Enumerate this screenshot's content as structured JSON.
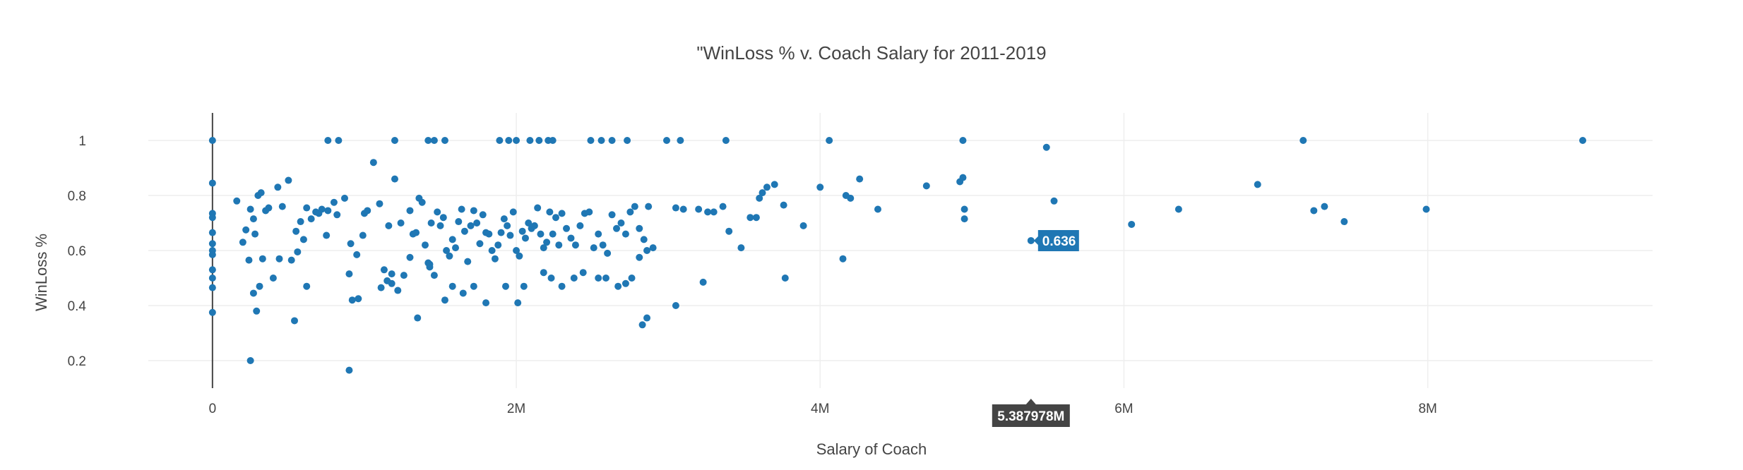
{
  "modebar": {
    "buttons": [
      {
        "name": "camera-icon",
        "group": 0
      },
      {
        "name": "zoom-icon",
        "group": 1
      },
      {
        "name": "pan-icon",
        "group": 1
      },
      {
        "name": "box-select-icon",
        "group": 1
      },
      {
        "name": "lasso-select-icon",
        "group": 1
      },
      {
        "name": "zoom-in-icon",
        "group": 2
      },
      {
        "name": "zoom-out-icon",
        "group": 2
      },
      {
        "name": "autoscale-icon",
        "group": 2
      },
      {
        "name": "home-icon",
        "group": 2
      },
      {
        "name": "spike-lines-icon",
        "group": 3
      },
      {
        "name": "hover-closest-icon",
        "group": 3
      },
      {
        "name": "hover-compare-icon",
        "group": 3
      },
      {
        "name": "plotly-logo-icon",
        "group": 4
      }
    ],
    "active": "zoom-icon",
    "icon_color": "#c9c9c9",
    "active_color": "#555555"
  },
  "chart_data": {
    "type": "scatter",
    "title": "\"WinLoss % v. Coach Salary for 2011-2019",
    "xlabel": "Salary of Coach",
    "ylabel": "WinLoss %",
    "xlim": [
      -1050000,
      9480000
    ],
    "ylim": [
      0.1,
      1.1
    ],
    "x_ticks": [
      0,
      2000000,
      4000000,
      6000000,
      8000000
    ],
    "x_tick_labels": [
      "0",
      "2M",
      "4M",
      "6M",
      "8M"
    ],
    "y_ticks": [
      0.2,
      0.4,
      0.6,
      0.8,
      1
    ],
    "y_tick_labels": [
      "0.2",
      "0.4",
      "0.6",
      "0.8",
      "1"
    ],
    "grid": true,
    "zeroline_x": true,
    "marker_color": "#1f77b4",
    "hover": {
      "x": 5387978,
      "y": 0.636,
      "x_label": "5.387978M",
      "y_label": "0.636"
    },
    "x": [
      0,
      0,
      0,
      0,
      0,
      0,
      0,
      0,
      0,
      0,
      0,
      0,
      160000,
      200000,
      220000,
      240000,
      250000,
      270000,
      280000,
      300000,
      320000,
      330000,
      350000,
      370000,
      400000,
      430000,
      460000,
      500000,
      520000,
      550000,
      560000,
      580000,
      600000,
      620000,
      650000,
      680000,
      700000,
      720000,
      750000,
      760000,
      800000,
      820000,
      870000,
      900000,
      920000,
      950000,
      990000,
      1000000,
      1020000,
      1060000,
      1100000,
      1130000,
      1160000,
      1180000,
      1200000,
      1220000,
      1240000,
      1260000,
      1300000,
      1320000,
      1340000,
      1360000,
      1380000,
      1400000,
      1420000,
      1430000,
      1440000,
      1460000,
      1480000,
      1500000,
      1520000,
      1540000,
      1560000,
      1580000,
      1600000,
      1620000,
      1640000,
      1660000,
      1680000,
      1700000,
      1720000,
      1740000,
      1760000,
      1780000,
      1800000,
      1820000,
      1840000,
      1860000,
      1880000,
      1900000,
      1920000,
      1940000,
      1960000,
      1980000,
      2000000,
      2020000,
      2040000,
      2060000,
      2080000,
      2100000,
      2120000,
      2140000,
      2160000,
      2180000,
      2200000,
      2220000,
      2240000,
      2260000,
      2280000,
      2300000,
      2330000,
      2360000,
      2390000,
      2420000,
      2450000,
      2480000,
      2510000,
      2540000,
      2570000,
      2600000,
      2630000,
      2660000,
      2690000,
      2720000,
      2750000,
      2780000,
      2810000,
      2840000,
      2870000,
      2900000,
      760000,
      830000,
      1200000,
      1420000,
      1460000,
      1530000,
      1890000,
      1950000,
      2000000,
      2090000,
      2150000,
      2210000,
      2240000,
      2490000,
      2560000,
      2630000,
      2730000,
      2990000,
      3080000,
      3380000,
      4060000,
      4940000,
      7180000,
      9020000,
      250000,
      270000,
      310000,
      440000,
      540000,
      620000,
      900000,
      960000,
      1110000,
      1150000,
      1180000,
      1300000,
      1350000,
      1430000,
      1530000,
      1580000,
      1650000,
      1720000,
      1800000,
      1930000,
      2010000,
      2050000,
      2180000,
      2230000,
      2300000,
      2380000,
      2440000,
      2540000,
      2590000,
      2670000,
      2720000,
      2760000,
      2830000,
      2860000,
      3050000,
      3100000,
      3200000,
      3260000,
      3300000,
      3360000,
      3400000,
      3480000,
      3540000,
      3580000,
      3600000,
      3620000,
      3650000,
      3700000,
      3760000,
      3890000,
      4000000,
      4150000,
      4200000,
      4260000,
      4380000,
      4700000,
      4920000,
      4940000,
      4950000,
      4950000,
      5490000,
      5540000,
      6050000,
      6360000,
      6880000,
      7250000,
      7320000,
      7450000,
      7990000,
      5387978,
      290000,
      910000,
      2810000,
      2860000,
      3050000,
      3230000,
      3770000,
      4170000
    ],
    "y": [
      1,
      0.845,
      0.735,
      0.72,
      0.665,
      0.625,
      0.6,
      0.585,
      0.53,
      0.5,
      0.465,
      0.375,
      0.78,
      0.63,
      0.675,
      0.565,
      0.75,
      0.715,
      0.66,
      0.8,
      0.81,
      0.57,
      0.745,
      0.755,
      0.5,
      0.83,
      0.76,
      0.855,
      0.565,
      0.67,
      0.595,
      0.705,
      0.64,
      0.755,
      0.715,
      0.74,
      0.735,
      0.75,
      0.655,
      0.745,
      0.775,
      0.73,
      0.79,
      0.515,
      0.42,
      0.585,
      0.655,
      0.735,
      0.745,
      0.92,
      0.77,
      0.53,
      0.69,
      0.48,
      0.86,
      0.455,
      0.7,
      0.51,
      0.745,
      0.66,
      0.665,
      0.79,
      0.775,
      0.62,
      0.555,
      0.54,
      0.7,
      0.51,
      0.74,
      0.69,
      0.72,
      0.6,
      0.58,
      0.64,
      0.61,
      0.705,
      0.75,
      0.67,
      0.56,
      0.69,
      0.745,
      0.7,
      0.625,
      0.73,
      0.665,
      0.66,
      0.6,
      0.57,
      0.62,
      0.665,
      0.715,
      0.69,
      0.655,
      0.74,
      0.6,
      0.58,
      0.67,
      0.645,
      0.7,
      0.68,
      0.69,
      0.755,
      0.66,
      0.61,
      0.63,
      0.74,
      0.66,
      0.72,
      0.62,
      0.735,
      0.68,
      0.645,
      0.62,
      0.69,
      0.735,
      0.74,
      0.61,
      0.66,
      0.62,
      0.59,
      0.73,
      0.68,
      0.7,
      0.66,
      0.74,
      0.76,
      0.68,
      0.64,
      0.76,
      0.61,
      1,
      1,
      1,
      1,
      1,
      1,
      1,
      1,
      1,
      1,
      1,
      1,
      1,
      1,
      1,
      1,
      1,
      1,
      1,
      1,
      1,
      1,
      1,
      1,
      0.2,
      0.445,
      0.47,
      0.57,
      0.345,
      0.47,
      0.165,
      0.425,
      0.465,
      0.49,
      0.515,
      0.575,
      0.355,
      0.55,
      0.42,
      0.47,
      0.445,
      0.47,
      0.41,
      0.47,
      0.41,
      0.47,
      0.52,
      0.5,
      0.47,
      0.5,
      0.52,
      0.5,
      0.5,
      0.47,
      0.48,
      0.5,
      0.33,
      0.355,
      0.755,
      0.75,
      0.75,
      0.74,
      0.74,
      0.76,
      0.67,
      0.61,
      0.72,
      0.72,
      0.79,
      0.81,
      0.83,
      0.84,
      0.765,
      0.69,
      0.83,
      0.57,
      0.79,
      0.86,
      0.75,
      0.835,
      0.85,
      0.865,
      0.75,
      0.715,
      0.975,
      0.78,
      0.695,
      0.75,
      0.84,
      0.745,
      0.76,
      0.705,
      0.75,
      0.636,
      0.38,
      0.625,
      0.575,
      0.6,
      0.4,
      0.485,
      0.5,
      0.8
    ]
  }
}
